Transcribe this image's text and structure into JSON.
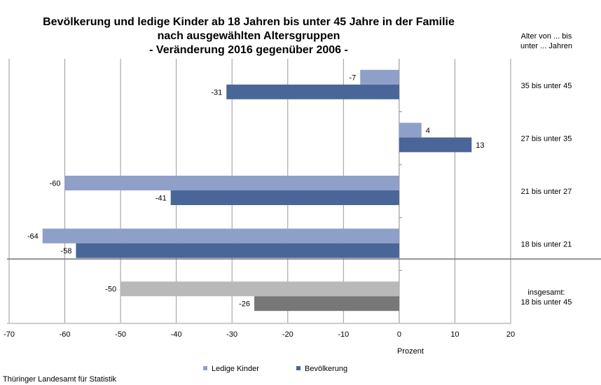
{
  "chart_data": {
    "type": "bar",
    "orientation": "horizontal",
    "title_lines": [
      "Bevölkerung und ledige Kinder ab 18 Jahren bis unter 45 Jahre in der Familie",
      "nach ausgewählten Altersgruppen",
      "- Veränderung 2016 gegenüber 2006 -"
    ],
    "category_header_lines": [
      "Alter von ... bis",
      "unter ... Jahren"
    ],
    "categories": [
      [
        "35 bis unter 45"
      ],
      [
        "27 bis unter 35"
      ],
      [
        "21 bis unter 27"
      ],
      [
        "18 bis unter 21"
      ],
      [
        "insgesamt:",
        "18 bis unter 45"
      ]
    ],
    "series": [
      {
        "name": "Ledige Kinder",
        "values": [
          -7,
          4,
          -60,
          -64,
          -50
        ],
        "color": "#8fa0c8",
        "total_color": "#b9b9b9"
      },
      {
        "name": "Bevölkerung",
        "values": [
          -31,
          13,
          -41,
          -58,
          -26
        ],
        "color": "#4a6698",
        "total_color": "#777777"
      }
    ],
    "xlabel": "Prozent",
    "xlim": [
      -70,
      20
    ],
    "xticks": [
      -70,
      -60,
      -50,
      -40,
      -30,
      -20,
      -10,
      0,
      10,
      20
    ],
    "grid": true,
    "legend_position": "bottom",
    "source": "Thüringer Landesamt für Statistik"
  }
}
